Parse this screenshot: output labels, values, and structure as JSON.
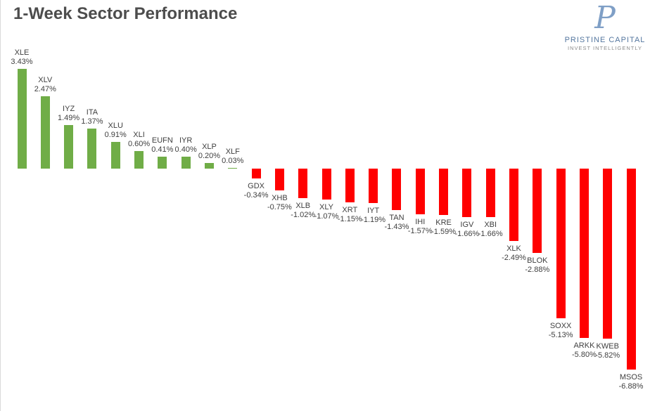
{
  "header": {
    "title": "1-Week Sector Performance"
  },
  "logo": {
    "monogram": "P",
    "name": "PRISTINE CAPITAL",
    "tagline": "INVEST INTELLIGENTLY",
    "monogram_color": "#7f9fc6",
    "name_color": "#55779f",
    "tagline_color": "#8c8c8c"
  },
  "chart_data": {
    "type": "bar",
    "title": "1-Week Sector Performance",
    "orientation": "vertical",
    "categories": [
      "XLE",
      "XLV",
      "IYZ",
      "ITA",
      "XLU",
      "XLI",
      "EUFN",
      "IYR",
      "XLP",
      "XLF",
      "GDX",
      "XHB",
      "XLB",
      "XLY",
      "XRT",
      "IYT",
      "TAN",
      "IHI",
      "KRE",
      "IGV",
      "XBI",
      "XLK",
      "BLOK",
      "SOXX",
      "ARKK",
      "KWEB",
      "MSOS"
    ],
    "values": [
      3.43,
      2.47,
      1.49,
      1.37,
      0.91,
      0.6,
      0.41,
      0.4,
      0.2,
      0.03,
      -0.34,
      -0.75,
      -1.02,
      -1.07,
      -1.15,
      -1.19,
      -1.43,
      -1.57,
      -1.59,
      -1.66,
      -1.66,
      -2.49,
      -2.88,
      -5.13,
      -5.8,
      -5.82,
      -6.88
    ],
    "value_suffix": "%",
    "value_decimals": 2,
    "positive_color": "#70AD47",
    "negative_color": "#FF0000",
    "label_color": "#404040",
    "data_labels": true,
    "axes_hidden": true,
    "grid": false,
    "legend": "none",
    "ylim": [
      -7.5,
      4.0
    ]
  }
}
